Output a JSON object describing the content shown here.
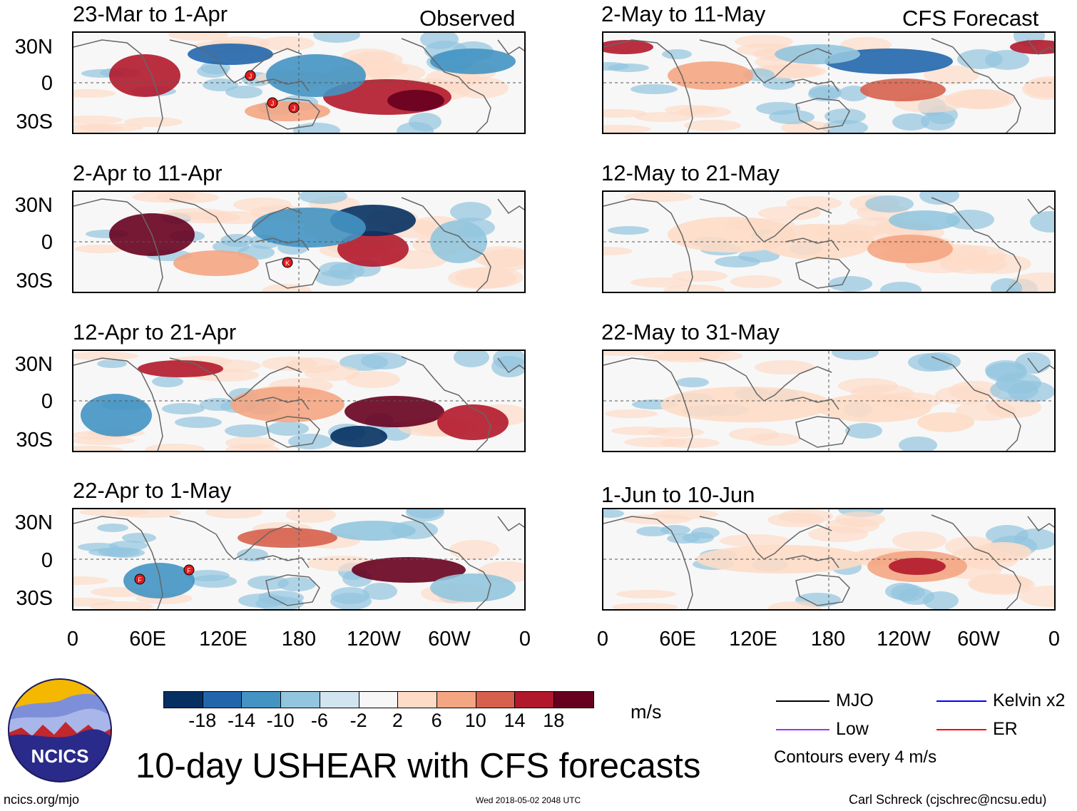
{
  "labels": {
    "observed": "Observed",
    "forecast": "CFS Forecast"
  },
  "panels": {
    "observed": [
      {
        "period": "23-Mar to 1-Apr"
      },
      {
        "period": "2-Apr to 11-Apr"
      },
      {
        "period": "12-Apr to 21-Apr"
      },
      {
        "period": "22-Apr to 1-May"
      }
    ],
    "forecast": [
      {
        "period": "2-May to 11-May"
      },
      {
        "period": "12-May to 21-May"
      },
      {
        "period": "22-May to 31-May"
      },
      {
        "period": "1-Jun to 10-Jun"
      }
    ]
  },
  "y_ticks": [
    "30N",
    "0",
    "30S"
  ],
  "x_ticks": [
    "0",
    "60E",
    "120E",
    "180",
    "120W",
    "60W",
    "0"
  ],
  "colorbar": {
    "ticks": [
      "-18",
      "-14",
      "-10",
      "-6",
      "-2",
      "2",
      "6",
      "10",
      "14",
      "18"
    ],
    "unit": "m/s",
    "colors": [
      "#053061",
      "#2166ac",
      "#4393c3",
      "#92c5de",
      "#d1e5f0",
      "#f7f7f7",
      "#fddbc7",
      "#f4a582",
      "#d6604d",
      "#b2182b",
      "#67001f"
    ]
  },
  "storm_markers": {
    "panel1": [
      "J",
      "J",
      "J"
    ],
    "panel2": [
      "K"
    ],
    "panel4": [
      "F",
      "F"
    ]
  },
  "legend": {
    "mjo": "MJO",
    "kelvin": "Kelvin x2",
    "low": "Low",
    "er": "ER",
    "contours": "Contours every 4 m/s",
    "colors": {
      "mjo": "#000000",
      "kelvin": "#0000ff",
      "low": "#9933ff",
      "er": "#ff0000"
    }
  },
  "logo_text": "NCICS",
  "main_title": "10-day USHEAR with CFS forecasts",
  "footer": {
    "left": "ncics.org/mjo",
    "center": "Wed 2018-05-02 2048 UTC",
    "right": "Carl Schreck (cjschrec@ncsu.edu)"
  }
}
